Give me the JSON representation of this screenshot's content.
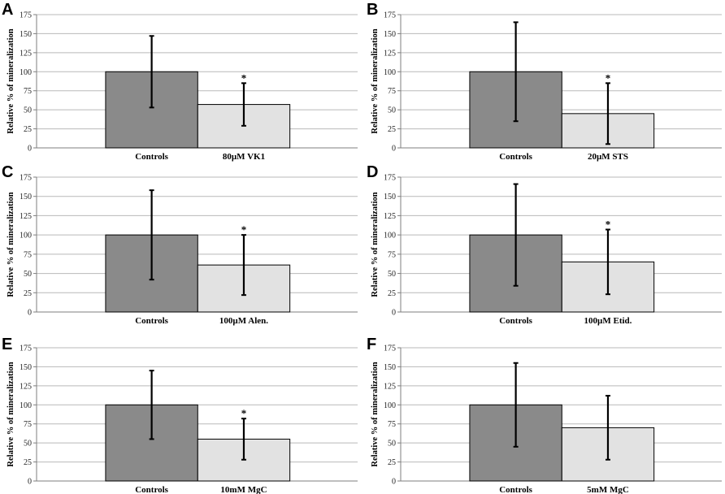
{
  "figure": {
    "colors": {
      "control_bar": "#8a8a8a",
      "treatment_bar": "#e2e2e2",
      "grid": "#b9b9b9",
      "error_bar": "#000000"
    }
  },
  "chart_data": [
    {
      "panel": "A",
      "type": "bar",
      "categories": [
        "Controls",
        "80µM VK1"
      ],
      "values": [
        100,
        57
      ],
      "errors": [
        47,
        28
      ],
      "significant": [
        false,
        true
      ],
      "marker": "*",
      "ylabel": "Relative % of mineralization",
      "ylim": [
        0,
        175
      ],
      "yticks": [
        0,
        25,
        50,
        75,
        100,
        125,
        150,
        175
      ],
      "grid": true
    },
    {
      "panel": "B",
      "type": "bar",
      "categories": [
        "Controls",
        "20µM STS"
      ],
      "values": [
        100,
        45
      ],
      "errors": [
        65,
        40
      ],
      "significant": [
        false,
        true
      ],
      "marker": "*",
      "ylabel": "Relative % of mineralization",
      "ylim": [
        0,
        175
      ],
      "yticks": [
        0,
        25,
        50,
        75,
        100,
        125,
        150,
        175
      ],
      "grid": true
    },
    {
      "panel": "C",
      "type": "bar",
      "categories": [
        "Controls",
        "100µM Alen."
      ],
      "values": [
        100,
        61
      ],
      "errors": [
        58,
        39
      ],
      "significant": [
        false,
        true
      ],
      "marker": "*",
      "ylabel": "Relative % of mineralization",
      "ylim": [
        0,
        175
      ],
      "yticks": [
        0,
        25,
        50,
        75,
        100,
        125,
        150,
        175
      ],
      "grid": true
    },
    {
      "panel": "D",
      "type": "bar",
      "categories": [
        "Controls",
        "100µM Etid."
      ],
      "values": [
        100,
        65
      ],
      "errors": [
        66,
        42
      ],
      "significant": [
        false,
        true
      ],
      "marker": "*",
      "ylabel": "Relative % of mineralization",
      "ylim": [
        0,
        175
      ],
      "yticks": [
        0,
        25,
        50,
        75,
        100,
        125,
        150,
        175
      ],
      "grid": true
    },
    {
      "panel": "E",
      "type": "bar",
      "categories": [
        "Controls",
        "10mM MgC"
      ],
      "values": [
        100,
        55
      ],
      "errors": [
        45,
        27
      ],
      "significant": [
        false,
        true
      ],
      "marker": "*",
      "ylabel": "Relative % of mineralization",
      "ylim": [
        0,
        175
      ],
      "yticks": [
        0,
        25,
        50,
        75,
        100,
        125,
        150,
        175
      ],
      "grid": true
    },
    {
      "panel": "F",
      "type": "bar",
      "categories": [
        "Controls",
        "5mM MgC"
      ],
      "values": [
        100,
        70
      ],
      "errors": [
        55,
        42
      ],
      "significant": [
        false,
        false
      ],
      "marker": "*",
      "ylabel": "Relative % of mineralization",
      "ylim": [
        0,
        175
      ],
      "yticks": [
        0,
        25,
        50,
        75,
        100,
        125,
        150,
        175
      ],
      "grid": true
    }
  ]
}
